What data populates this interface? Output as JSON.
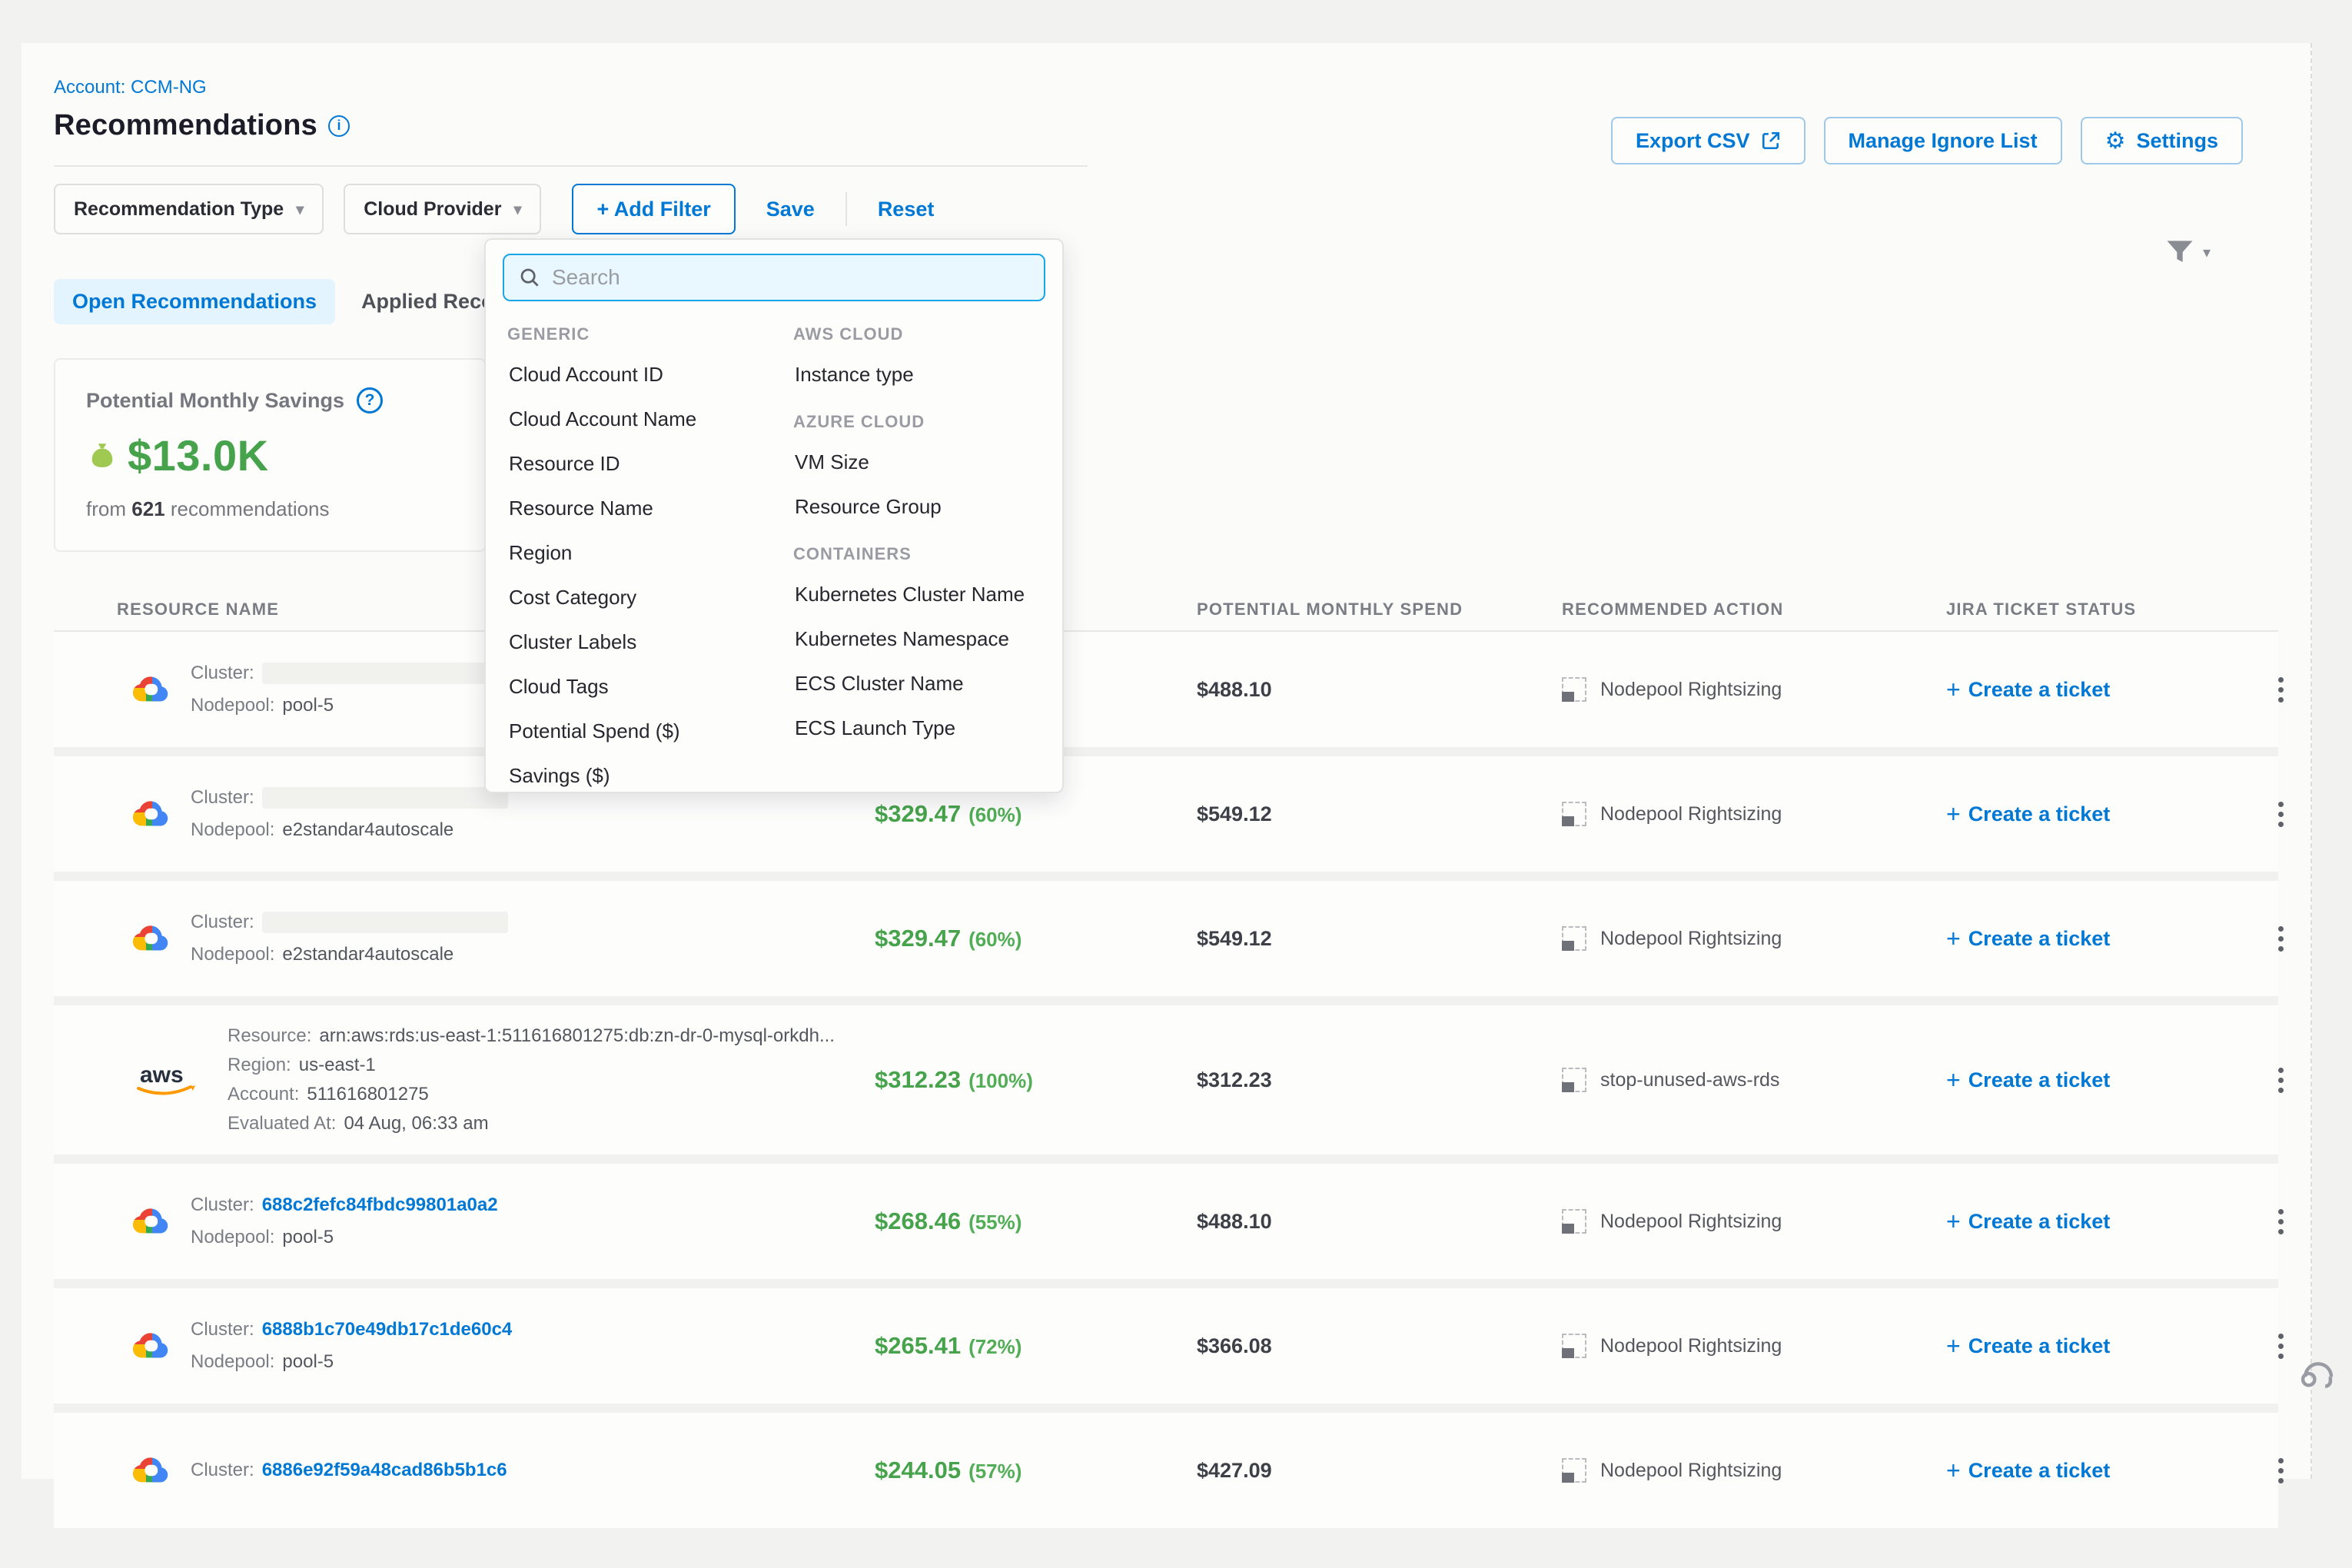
{
  "page": {
    "account_label": "Account: CCM-NG",
    "title": "Recommendations"
  },
  "theme": {
    "accent_blue": "#0278d5",
    "savings_green": "#46a34b",
    "title_dark": "#1c1c28",
    "muted_gray": "#7b7d85"
  },
  "header_actions": {
    "export_csv": "Export CSV",
    "manage_ignore_list": "Manage Ignore List",
    "settings": "Settings"
  },
  "filter_bar": {
    "recommendation_type": "Recommendation Type",
    "cloud_provider": "Cloud Provider",
    "add_filter": "+ Add Filter",
    "save": "Save",
    "reset": "Reset"
  },
  "filter_dropdown": {
    "search_placeholder": "Search",
    "columns": [
      {
        "groups": [
          {
            "header": "GENERIC",
            "items": [
              "Cloud Account ID",
              "Cloud Account Name",
              "Resource ID",
              "Resource Name",
              "Region",
              "Cost Category",
              "Cluster Labels",
              "Cloud Tags",
              "Potential Spend ($)",
              "Savings ($)"
            ]
          }
        ]
      },
      {
        "groups": [
          {
            "header": "AWS CLOUD",
            "items": [
              "Instance type"
            ]
          },
          {
            "header": "AZURE CLOUD",
            "items": [
              "VM Size",
              "Resource Group"
            ]
          },
          {
            "header": "CONTAINERS",
            "items": [
              "Kubernetes Cluster Name",
              "Kubernetes Namespace",
              "ECS Cluster Name",
              "ECS Launch Type"
            ]
          }
        ]
      }
    ]
  },
  "tabs": [
    {
      "label": "Open Recommendations",
      "active": true
    },
    {
      "label": "Applied Recommendations",
      "active": false
    }
  ],
  "savings_card": {
    "title": "Potential Monthly Savings",
    "amount": "$13.0K",
    "subtitle_prefix": "from",
    "count": "621",
    "subtitle_suffix": "recommendations"
  },
  "table": {
    "headers": [
      "RESOURCE NAME",
      "POTENTIAL MONTHLY SPEND",
      "RECOMMENDED ACTION",
      "JIRA TICKET STATUS"
    ],
    "rows": [
      {
        "provider": "gcp",
        "tall": false,
        "lines": [
          {
            "label": "Cluster:",
            "value": "",
            "style": "redacted"
          },
          {
            "label": "Nodepool:",
            "value": "pool-5",
            "style": "plain"
          }
        ],
        "savings": null,
        "spend": "$488.10",
        "action": "Nodepool Rightsizing",
        "ticket": "Create a ticket"
      },
      {
        "provider": "gcp",
        "tall": false,
        "lines": [
          {
            "label": "Cluster:",
            "value": "",
            "style": "redacted"
          },
          {
            "label": "Nodepool:",
            "value": "e2standar4autoscale",
            "style": "plain"
          }
        ],
        "savings": {
          "amount": "$329.47",
          "pct": "(60%)"
        },
        "spend": "$549.12",
        "action": "Nodepool Rightsizing",
        "ticket": "Create a ticket"
      },
      {
        "provider": "gcp",
        "tall": false,
        "lines": [
          {
            "label": "Cluster:",
            "value": "",
            "style": "redacted"
          },
          {
            "label": "Nodepool:",
            "value": "e2standar4autoscale",
            "style": "plain"
          }
        ],
        "savings": {
          "amount": "$329.47",
          "pct": "(60%)"
        },
        "spend": "$549.12",
        "action": "Nodepool Rightsizing",
        "ticket": "Create a ticket"
      },
      {
        "provider": "aws",
        "tall": true,
        "lines": [
          {
            "label": "Resource:",
            "value": "arn:aws:rds:us-east-1:511616801275:db:zn-dr-0-mysql-orkdh...",
            "style": "plain"
          },
          {
            "label": "Region:",
            "value": "us-east-1",
            "style": "plain"
          },
          {
            "label": "Account:",
            "value": "511616801275",
            "style": "plain"
          },
          {
            "label": "Evaluated At:",
            "value": "04 Aug, 06:33 am",
            "style": "plain"
          }
        ],
        "savings": {
          "amount": "$312.23",
          "pct": "(100%)"
        },
        "spend": "$312.23",
        "action": "stop-unused-aws-rds",
        "ticket": "Create a ticket"
      },
      {
        "provider": "gcp",
        "tall": false,
        "lines": [
          {
            "label": "Cluster:",
            "value": "688c2fefc84fbdc99801a0a2",
            "style": "link"
          },
          {
            "label": "Nodepool:",
            "value": "pool-5",
            "style": "plain"
          }
        ],
        "savings": {
          "amount": "$268.46",
          "pct": "(55%)"
        },
        "spend": "$488.10",
        "action": "Nodepool Rightsizing",
        "ticket": "Create a ticket"
      },
      {
        "provider": "gcp",
        "tall": false,
        "lines": [
          {
            "label": "Cluster:",
            "value": "6888b1c70e49db17c1de60c4",
            "style": "link"
          },
          {
            "label": "Nodepool:",
            "value": "pool-5",
            "style": "plain"
          }
        ],
        "savings": {
          "amount": "$265.41",
          "pct": "(72%)"
        },
        "spend": "$366.08",
        "action": "Nodepool Rightsizing",
        "ticket": "Create a ticket"
      },
      {
        "provider": "gcp",
        "tall": false,
        "lines": [
          {
            "label": "Cluster:",
            "value": "6886e92f59a48cad86b5b1c6",
            "style": "link"
          }
        ],
        "savings": {
          "amount": "$244.05",
          "pct": "(57%)"
        },
        "spend": "$427.09",
        "action": "Nodepool Rightsizing",
        "ticket": "Create a ticket"
      }
    ]
  }
}
